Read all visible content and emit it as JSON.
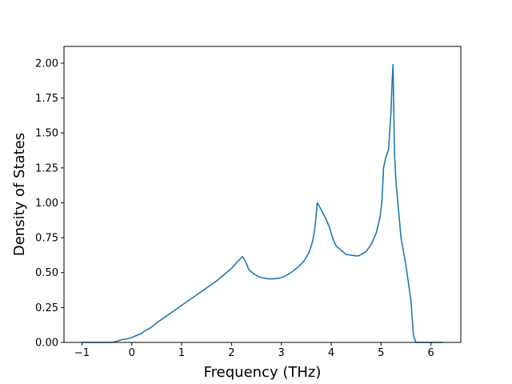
{
  "chart_data": {
    "type": "line",
    "title": "",
    "xlabel": "Frequency (THz)",
    "ylabel": "Density of States",
    "xlim": [
      -1.36,
      6.6
    ],
    "ylim": [
      0,
      2.12
    ],
    "xticks": [
      -1,
      0,
      1,
      2,
      3,
      4,
      5,
      6
    ],
    "xtick_labels": [
      "−1",
      "0",
      "1",
      "2",
      "3",
      "4",
      "5",
      "6"
    ],
    "yticks": [
      0,
      0.25,
      0.5,
      0.75,
      1.0,
      1.25,
      1.5,
      1.75,
      2.0
    ],
    "ytick_labels": [
      "0.00",
      "0.25",
      "0.50",
      "0.75",
      "1.00",
      "1.25",
      "1.50",
      "1.75",
      "2.00"
    ],
    "grid": false,
    "series": [
      {
        "color": "#1f77b4",
        "x": [
          -1.0,
          -0.4,
          -0.28,
          -0.2,
          -0.1,
          0.0,
          0.1,
          0.2,
          0.25,
          0.3,
          0.4,
          0.5,
          0.6,
          0.7,
          0.8,
          0.9,
          1.0,
          1.1,
          1.2,
          1.3,
          1.4,
          1.5,
          1.6,
          1.7,
          1.8,
          1.9,
          2.0,
          2.1,
          2.15,
          2.18,
          2.22,
          2.28,
          2.35,
          2.45,
          2.55,
          2.65,
          2.75,
          2.85,
          2.95,
          3.05,
          3.15,
          3.25,
          3.35,
          3.45,
          3.5,
          3.55,
          3.6,
          3.63,
          3.66,
          3.68,
          3.72,
          3.8,
          3.9,
          3.97,
          4.0,
          4.05,
          4.1,
          4.2,
          4.3,
          4.4,
          4.5,
          4.55,
          4.6,
          4.7,
          4.8,
          4.85,
          4.9,
          4.95,
          4.98,
          5.0,
          5.02,
          5.05,
          5.08,
          5.1,
          5.13,
          5.15,
          5.2,
          5.22,
          5.24,
          5.27,
          5.3,
          5.4,
          5.5,
          5.6,
          5.65,
          5.7,
          6.0,
          6.25
        ],
        "y": [
          0.0,
          0.0,
          0.01,
          0.02,
          0.025,
          0.035,
          0.05,
          0.065,
          0.08,
          0.09,
          0.11,
          0.14,
          0.165,
          0.19,
          0.215,
          0.24,
          0.265,
          0.29,
          0.315,
          0.34,
          0.365,
          0.39,
          0.415,
          0.44,
          0.47,
          0.5,
          0.53,
          0.57,
          0.59,
          0.6,
          0.615,
          0.58,
          0.52,
          0.49,
          0.47,
          0.46,
          0.455,
          0.455,
          0.46,
          0.47,
          0.49,
          0.515,
          0.545,
          0.58,
          0.61,
          0.64,
          0.69,
          0.73,
          0.79,
          0.84,
          1.0,
          0.95,
          0.88,
          0.82,
          0.78,
          0.73,
          0.69,
          0.66,
          0.63,
          0.625,
          0.62,
          0.62,
          0.63,
          0.65,
          0.7,
          0.74,
          0.78,
          0.85,
          0.9,
          0.96,
          1.02,
          1.25,
          1.3,
          1.33,
          1.36,
          1.38,
          1.65,
          1.85,
          1.99,
          1.35,
          1.15,
          0.75,
          0.55,
          0.3,
          0.05,
          0.0,
          0.0,
          0.0
        ]
      }
    ]
  }
}
